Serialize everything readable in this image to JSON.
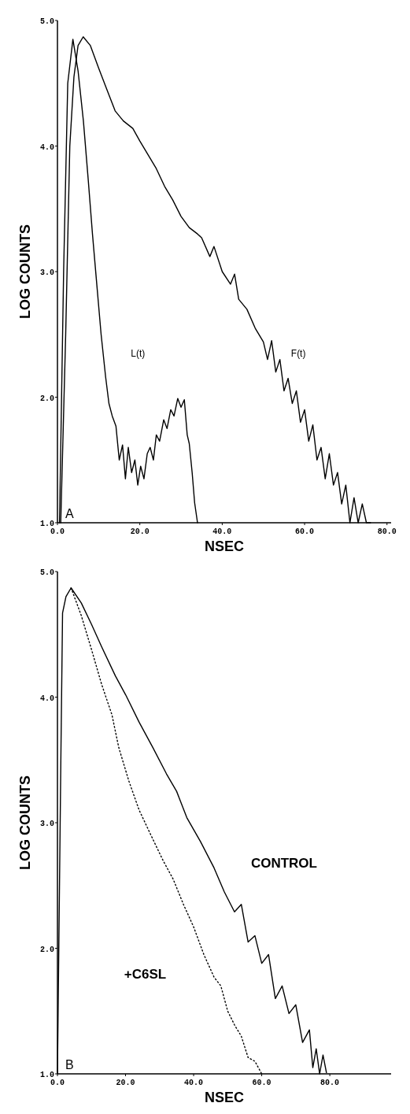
{
  "chart_data": [
    {
      "type": "line",
      "xlabel": "NSEC",
      "ylabel": "LOG COUNTS",
      "xlim": [
        0,
        81
      ],
      "ylim": [
        1,
        5
      ],
      "xticks": [
        {
          "value": 0,
          "label": "0.0"
        },
        {
          "value": 20,
          "label": "20.0"
        },
        {
          "value": 40,
          "label": "40.0"
        },
        {
          "value": 60,
          "label": "60.0"
        },
        {
          "value": 80,
          "label": "80.0"
        }
      ],
      "yticks": [
        {
          "value": 1,
          "label": "1.0"
        },
        {
          "value": 2,
          "label": "2.0"
        },
        {
          "value": 3,
          "label": "3.0"
        },
        {
          "value": 4,
          "label": "4.0"
        },
        {
          "value": 5,
          "label": "5.0"
        }
      ],
      "annotations": [
        "A"
      ],
      "series": [
        {
          "name": "F(t)",
          "color": "#000000",
          "line_style": "solid",
          "x": [
            0.8,
            2,
            3,
            4,
            5,
            6.25,
            8,
            10,
            12,
            14,
            16,
            18.3,
            20,
            22,
            24,
            26,
            28,
            30,
            32,
            34,
            35,
            37,
            38,
            40,
            42,
            43,
            44,
            46,
            48,
            50,
            51,
            52,
            53,
            54,
            55,
            56,
            57,
            58,
            59,
            60,
            61,
            62,
            63,
            64,
            65,
            66,
            67,
            68,
            69,
            70,
            71,
            72,
            73,
            74,
            75,
            76
          ],
          "values": [
            1,
            2.5,
            4.0,
            4.55,
            4.8,
            4.87,
            4.8,
            4.62,
            4.45,
            4.28,
            4.2,
            4.14,
            4.04,
            3.93,
            3.82,
            3.68,
            3.57,
            3.44,
            3.35,
            3.3,
            3.27,
            3.12,
            3.2,
            3.0,
            2.9,
            2.98,
            2.78,
            2.7,
            2.55,
            2.44,
            2.3,
            2.45,
            2.2,
            2.3,
            2.05,
            2.15,
            1.95,
            2.05,
            1.8,
            1.9,
            1.65,
            1.78,
            1.5,
            1.6,
            1.35,
            1.55,
            1.3,
            1.4,
            1.15,
            1.3,
            1.0,
            1.2,
            1.0,
            1.15,
            1.0,
            1.0
          ]
        },
        {
          "name": "L(t)",
          "color": "#000000",
          "line_style": "solid",
          "x": [
            0.5,
            1.5,
            2.5,
            3.75,
            5,
            6.3,
            7.5,
            8.5,
            9.6,
            10.6,
            11.7,
            12.5,
            13.3,
            14.2,
            15,
            15.8,
            16.5,
            17.2,
            18,
            18.8,
            19.5,
            20.2,
            21,
            21.8,
            22.5,
            23.3,
            24,
            24.8,
            25.8,
            26.6,
            27.5,
            28.3,
            29.2,
            30,
            30.8,
            31.5,
            32,
            32.7,
            33.3,
            34
          ],
          "values": [
            1,
            3.0,
            4.5,
            4.85,
            4.6,
            4.2,
            3.72,
            3.3,
            2.88,
            2.5,
            2.16,
            1.95,
            1.85,
            1.77,
            1.5,
            1.62,
            1.35,
            1.6,
            1.4,
            1.5,
            1.3,
            1.45,
            1.35,
            1.55,
            1.6,
            1.5,
            1.7,
            1.65,
            1.82,
            1.75,
            1.9,
            1.85,
            1.99,
            1.92,
            1.98,
            1.7,
            1.63,
            1.4,
            1.16,
            1.0
          ]
        }
      ]
    },
    {
      "type": "line",
      "xlabel": "NSEC",
      "ylabel": "LOG COUNTS",
      "xlim": [
        0,
        98
      ],
      "ylim": [
        1,
        5
      ],
      "xticks": [
        {
          "value": 0,
          "label": "0.0"
        },
        {
          "value": 20,
          "label": "20.0"
        },
        {
          "value": 40,
          "label": "40.0"
        },
        {
          "value": 60,
          "label": "60.0"
        },
        {
          "value": 80,
          "label": "80.0"
        }
      ],
      "yticks": [
        {
          "value": 1,
          "label": "1.0"
        },
        {
          "value": 2,
          "label": "2.0"
        },
        {
          "value": 3,
          "label": "3.0"
        },
        {
          "value": 4,
          "label": "4.0"
        },
        {
          "value": 5,
          "label": "5.0"
        }
      ],
      "annotations": [
        "B"
      ],
      "series": [
        {
          "name": "CONTROL",
          "color": "#000000",
          "line_style": "solid",
          "x": [
            0,
            1,
            1.5,
            2.5,
            4,
            7,
            10,
            13,
            17,
            20,
            24,
            28,
            32,
            35,
            38,
            42,
            46,
            49,
            52,
            54,
            56,
            58,
            60,
            62,
            64,
            66,
            68,
            70,
            72,
            74,
            75,
            76,
            77,
            78,
            79
          ],
          "values": [
            1,
            3.5,
            4.67,
            4.8,
            4.87,
            4.75,
            4.58,
            4.4,
            4.17,
            4.02,
            3.8,
            3.6,
            3.39,
            3.25,
            3.04,
            2.85,
            2.64,
            2.45,
            2.29,
            2.35,
            2.05,
            2.1,
            1.88,
            1.95,
            1.6,
            1.7,
            1.48,
            1.55,
            1.25,
            1.35,
            1.05,
            1.2,
            1.0,
            1.15,
            1.01
          ]
        },
        {
          "name": "+C6SL",
          "color": "#000000",
          "line_style": "dotted",
          "x": [
            4,
            7,
            10,
            13,
            16,
            18,
            21,
            24,
            28,
            31,
            34,
            37,
            40,
            43,
            46,
            48,
            50,
            52,
            54,
            56,
            58,
            60
          ],
          "values": [
            4.87,
            4.65,
            4.38,
            4.1,
            3.86,
            3.6,
            3.33,
            3.1,
            2.87,
            2.7,
            2.55,
            2.35,
            2.17,
            1.95,
            1.77,
            1.7,
            1.5,
            1.39,
            1.3,
            1.13,
            1.1,
            1.0
          ]
        }
      ]
    }
  ]
}
